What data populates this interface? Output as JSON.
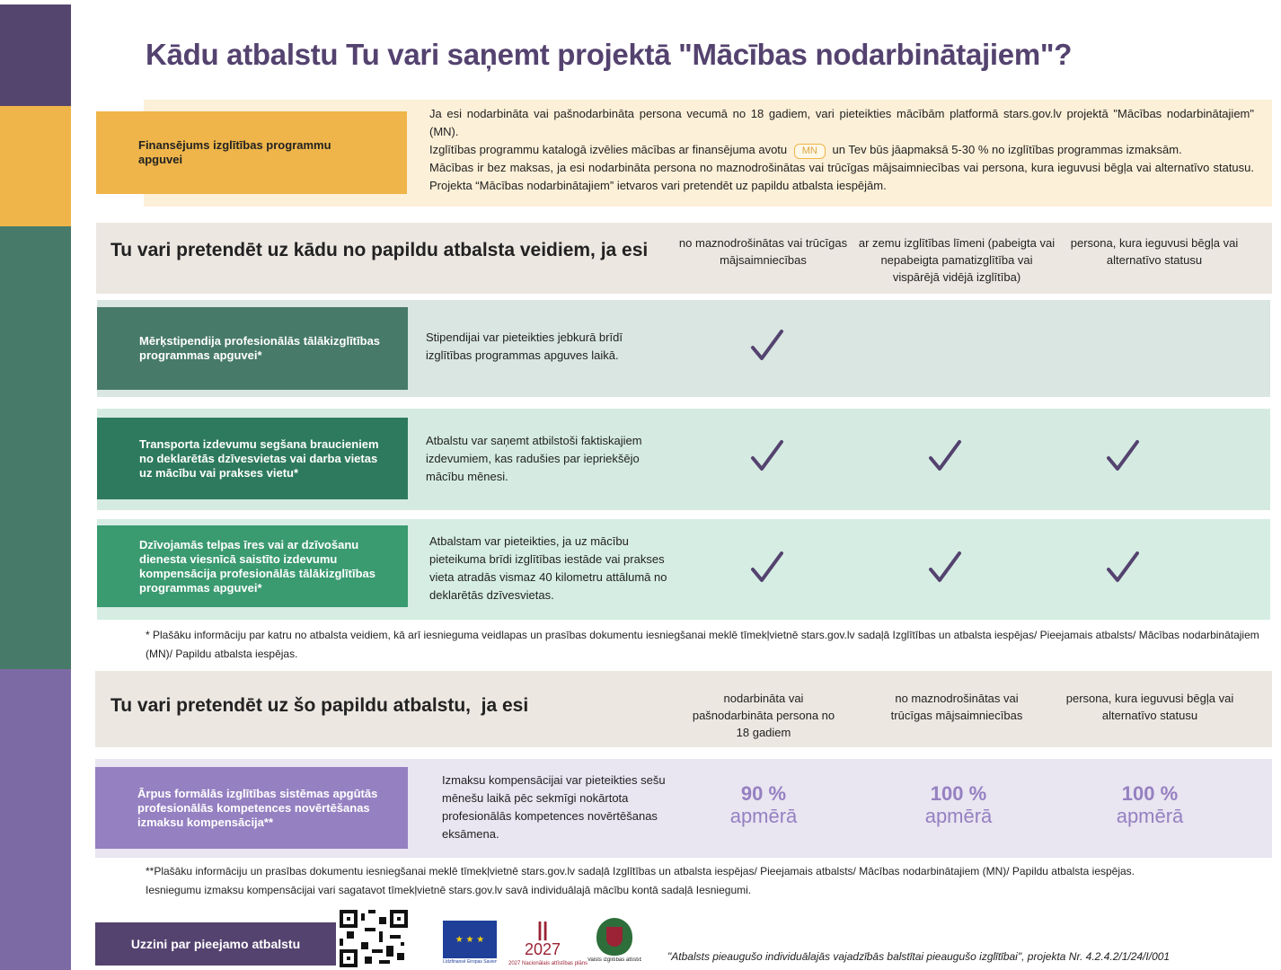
{
  "title": "Kādu atbalstu Tu vari saņemt projektā \"Mācības nodarbinātajiem\"?",
  "colors": {
    "purple": "#54426f",
    "yellow": "#efb54a",
    "green": "#477a68",
    "light_purple": "#7c6aa5"
  },
  "financing": {
    "label": "Finansējums izglītības programmu apguvei",
    "line1": "Ja esi nodarbināta vai pašnodarbināta persona vecumā no 18 gadiem, vari pieteikties mācībām platformā stars.gov.lv projektā \"Mācības nodarbinātajiem\" (MN).",
    "line2a": "Izglītības programmu katalogā izvēlies mācības ar finansējuma avotu",
    "badge": "MN",
    "line2b": "un Tev būs jāapmaksā 5-30 % no izglītības programmas izmaksām.",
    "line3": "Mācības ir bez maksas, ja esi nodarbināta persona no maznodrošinātas vai trūcīgas mājsaimniecības vai persona, kura ieguvusi bēgļa vai alternatīvo statusu. Projekta “Mācības nodarbinātajiem” ietvaros vari pretendēt uz papildu atbalsta iespējām."
  },
  "section1": {
    "heading": "Tu vari pretendēt uz kādu no papildu atbalsta veidiem, ja esi",
    "columns": [
      "no maznodrošinātas vai trūcīgas mājsaimniecības",
      "ar zemu izglītības līmeni (pabeigta vai nepabeigta pamatizglītība vai vispārējā vidējā izglītība)",
      "persona, kura ieguvusi bēgļa vai alternatīvo statusu"
    ],
    "rows": [
      {
        "label": "Mērķstipendija profesionālās tālākizglītības programmas apguvei*",
        "desc": "Stipendijai var pieteikties jebkurā brīdī izglītības programmas apguves laikā.",
        "checks": [
          true,
          false,
          false
        ]
      },
      {
        "label": "Transporta izdevumu segšana braucieniem no deklarētās dzīvesvietas vai darba vietas uz mācību vai prakses vietu*",
        "desc": "Atbalstu var saņemt atbilstoši faktiskajiem izdevumiem, kas radušies par iepriekšējo mācību mēnesi.",
        "checks": [
          true,
          true,
          true
        ]
      },
      {
        "label": "Dzīvojamās telpas īres vai ar dzīvošanu dienesta viesnīcā saistīto izdevumu kompensācija profesionālās tālākizglītības programmas apguvei*",
        "desc": "Atbalstam var pieteikties, ja uz mācību pieteikuma brīdi izglītības iestāde vai prakses vieta atradās vismaz 40 kilometru attālumā no deklarētās dzīvesvietas.",
        "checks": [
          true,
          true,
          true
        ]
      }
    ],
    "footnote": "* Plašāku informāciju par katru no atbalsta veidiem, kā arī iesnieguma veidlapas un prasības dokumentu iesniegšanai meklē tīmekļvietnē stars.gov.lv sadaļā Izglītības un atbalsta iespējas/ Pieejamais atbalsts/ Mācības nodarbinātajiem (MN)/ Papildu atbalsta iespējas."
  },
  "section2": {
    "heading": "Tu vari pretendēt uz šo papildu atbalstu,  ja esi",
    "columns": [
      "nodarbināta vai pašnodarbināta persona no 18 gadiem",
      "no maznodrošinātas vai trūcīgas mājsaimniecības",
      "persona, kura ieguvusi bēgļa vai alternatīvo statusu"
    ],
    "row": {
      "label": "Ārpus formālās izglītības sistēmas apgūtās profesionālās kompetences novērtēšanas izmaksu kompensācija**",
      "desc": "Izmaksu kompensācijai var pieteikties sešu mēnešu laikā pēc sekmīgi nokārtota profesionālās kompetences novērtēšanas eksāmena.",
      "values": [
        {
          "pct": "90 %",
          "unit": "apmērā"
        },
        {
          "pct": "100 %",
          "unit": "apmērā"
        },
        {
          "pct": "100 %",
          "unit": "apmērā"
        }
      ]
    },
    "footnote1": "**Plašāku informāciju un prasības dokumentu iesniegšanai meklē tīmekļvietnē stars.gov.lv sadaļā Izglītības un atbalsta iespējas/ Pieejamais atbalsts/ Mācības nodarbinātajiem (MN)/ Papildu atbalsta iespējas.",
    "footnote2": "Iesniegumu izmaksu kompensācijai vari sagatavot tīmekļvietnē stars.gov.lv savā individuālajā mācību kontā sadaļā Iesniegumi."
  },
  "footer": {
    "button": "Uzzini par pieejamo atbalstu",
    "logo_eu": "Līdzfinansē Eiropas Savienība",
    "logo_2027": "2027 Nacionālais attīstības plāns",
    "logo_viaa": "Valsts izglītības attīstības aģentūra",
    "project": "\"Atbalsts pieaugušo individuālajās vajadzībās balstītai pieaugušo izglītībai\", projekta Nr. 4.2.4.2/1/24/I/001"
  }
}
